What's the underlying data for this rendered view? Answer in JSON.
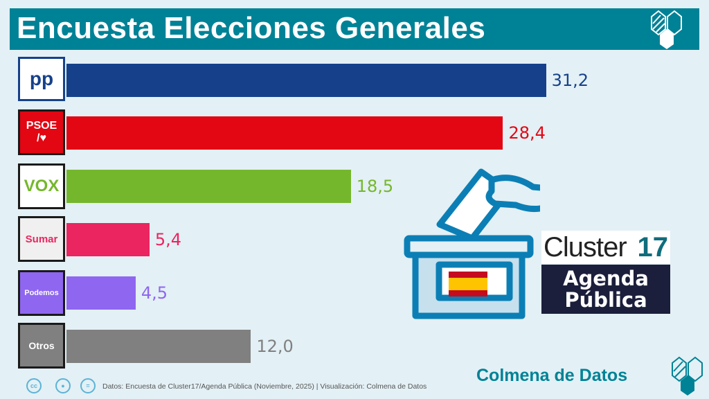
{
  "title": "Encuesta Elecciones Generales",
  "chart_data": {
    "type": "bar",
    "orientation": "horizontal",
    "categories": [
      "PP",
      "PSOE",
      "VOX",
      "Sumar",
      "Podemos",
      "Otros"
    ],
    "values": [
      31.2,
      28.4,
      18.5,
      5.4,
      4.5,
      12.0
    ],
    "value_labels": [
      "31,2",
      "28,4",
      "18,5",
      "5,4",
      "4,5",
      "12,0"
    ],
    "colors": [
      "#16418a",
      "#e30613",
      "#75b72c",
      "#ea255f",
      "#8f66f0",
      "#808080"
    ],
    "grid": false
  },
  "logos": {
    "pp": "pp",
    "psoe_line1": "PSOE",
    "psoe_line2": "/♥",
    "vox": "VOX",
    "sumar": "Sumar",
    "podemos": "Podemos",
    "otros": "Otros"
  },
  "partner_logo": {
    "cluster": "Cluster",
    "cluster_num": "17",
    "agenda_line1": "Agenda",
    "agenda_line2": "Pública"
  },
  "footer": {
    "source": "Datos: Encuesta de Cluster17/Agenda Pública (Noviembre, 2025) | Visualización: Colmena de Datos",
    "cc": "cc",
    "brand": "Colmena de Datos"
  }
}
